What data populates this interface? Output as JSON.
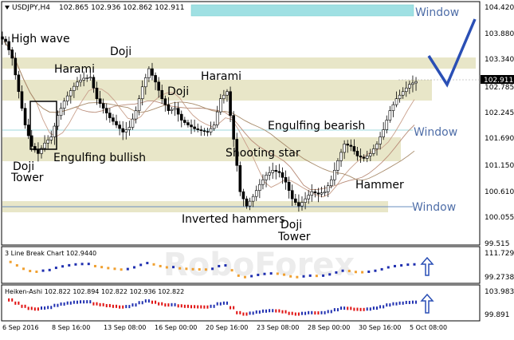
{
  "header": {
    "symbol": "USDJPY,H4",
    "ohlc": "102.865 102.936 102.862 102.911"
  },
  "price_axis": {
    "ticks": [
      "104.420",
      "103.880",
      "103.340",
      "102.785",
      "102.245",
      "101.690",
      "101.150",
      "100.610",
      "100.055",
      "99.515"
    ],
    "current_price": "102.911"
  },
  "line_break_panel": {
    "label": "3 Line Break Chart 102.9440",
    "ticks": [
      "111.7292",
      "99.2738"
    ]
  },
  "heiken_ashi_panel": {
    "label": "Heiken-Ashi 102.822 102.894 102.822 102.936 102.822",
    "ticks": [
      "103.983",
      "99.891"
    ]
  },
  "time_axis": {
    "labels": [
      "6 Sep 2016",
      "8 Sep 16:00",
      "13 Sep 08:00",
      "16 Sep 00:00",
      "20 Sep 16:00",
      "23 Sep 08:00",
      "28 Sep 00:00",
      "30 Sep 16:00",
      "5 Oct 08:00"
    ]
  },
  "annotations": {
    "window_top": "Window",
    "window_mid": "Window",
    "window_low": "Window",
    "high_wave": "High wave",
    "harami_1": "Harami",
    "doji_1": "Doji",
    "harami_2": "Harami",
    "doji_2": "Doji",
    "doji_tower_1_a": "Doji",
    "doji_tower_1_b": "Tower",
    "engulfing_bullish": "Engulfing bullish",
    "engulfing_bearish": "Engulfing bearish",
    "shooting_star": "Shooting star",
    "hammer": "Hammer",
    "inverted_hammers": "Inverted hammers",
    "doji_tower_2_a": "Doji",
    "doji_tower_2_b": "Tower"
  },
  "colors": {
    "bull_candle": "#ffffff",
    "bear_candle": "#000000",
    "zone_fill": "#e8e6c8",
    "window_fill": "#9fe0e3",
    "window_line": "#6a8fbf",
    "annotation_blue": "#4f6ea8",
    "arrow_blue": "#2a4fb5",
    "lb_up": "#1f2fb0",
    "lb_down": "#f0a030",
    "ha_up": "#1f2fb0",
    "ha_down": "#e01010"
  },
  "chart_data": {
    "type": "candlestick",
    "symbol": "USDJPY",
    "timeframe": "H4",
    "x_range": [
      "6 Sep 2016",
      "5 Oct 08:00"
    ],
    "y_range": [
      99.515,
      104.42
    ],
    "last_price": 102.911,
    "series": [
      {
        "name": "USDJPY,H4",
        "close_path": [
          103.75,
          103.4,
          102.7,
          102.0,
          101.55,
          101.4,
          101.62,
          101.75,
          102.2,
          102.5,
          102.72,
          102.9,
          102.98,
          103.0,
          102.55,
          102.35,
          102.15,
          102.0,
          101.85,
          101.95,
          102.3,
          102.8,
          103.18,
          102.9,
          102.55,
          102.3,
          102.35,
          102.1,
          102.0,
          101.92,
          101.88,
          101.85,
          102.0,
          102.55,
          102.7,
          101.7,
          100.6,
          100.3,
          100.5,
          100.75,
          100.95,
          101.05,
          101.0,
          100.8,
          100.45,
          100.3,
          100.45,
          100.6,
          100.55,
          100.6,
          100.85,
          101.25,
          101.6,
          101.55,
          101.35,
          101.3,
          101.4,
          101.6,
          101.9,
          102.3,
          102.55,
          102.7,
          102.85,
          102.91
        ]
      }
    ],
    "windows": [
      104.355,
      101.85,
      100.2
    ],
    "annotation_count": 17
  }
}
